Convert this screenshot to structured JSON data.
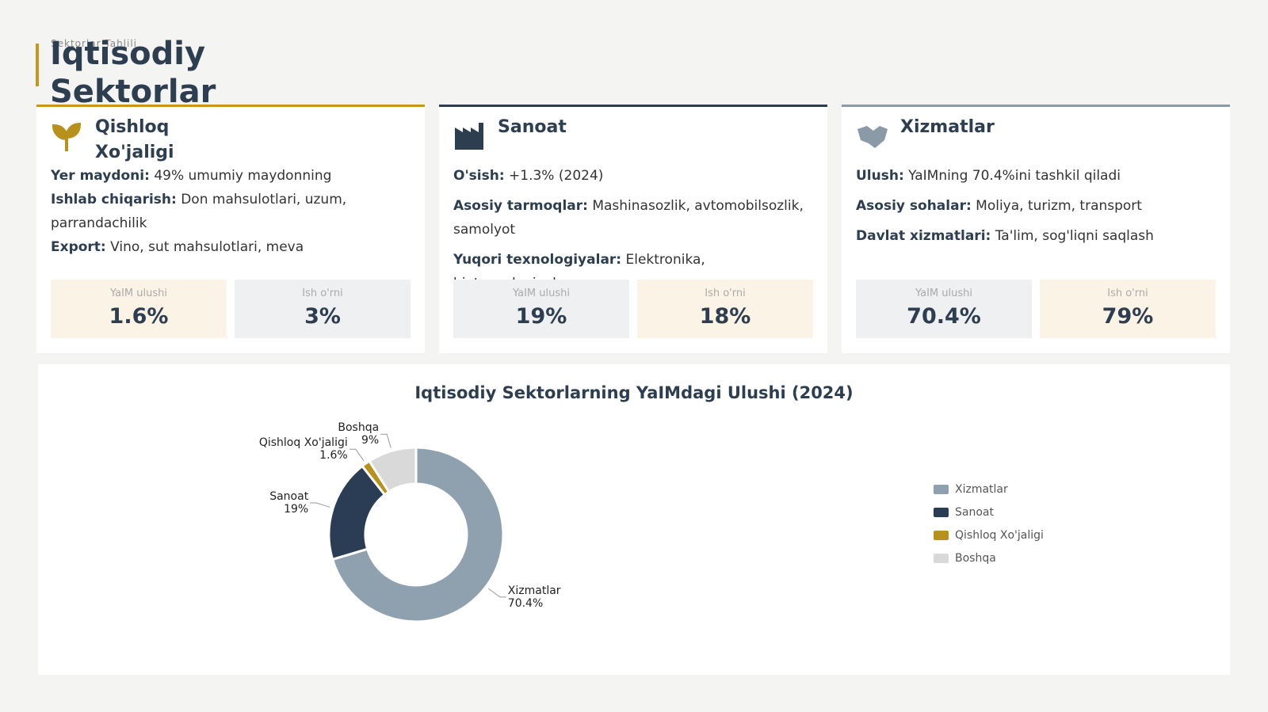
{
  "header": {
    "kicker": "Sektorlar Tahlili",
    "title": "Iqtisodiy Sektorlar"
  },
  "cards": [
    {
      "title": "Qishloq Xo'jaligi",
      "lines": [
        {
          "label": "Yer maydoni:",
          "text": "49% umumiy maydonning"
        },
        {
          "label": "Ishlab chiqarish:",
          "text": "Don mahsulotlari, uzum, parrandachilik"
        },
        {
          "label": "Export:",
          "text": "Vino, sut mahsulotlari, meva"
        }
      ],
      "stats": [
        {
          "label": "YaIM ulushi",
          "value": "1.6%"
        },
        {
          "label": "Ish o'rni",
          "value": "3%"
        }
      ]
    },
    {
      "title": "Sanoat",
      "lines": [
        {
          "label": "O'sish:",
          "text": "+1.3% (2024)"
        },
        {
          "label": "Asosiy tarmoqlar:",
          "text": "Mashinasozlik, avtomobilsozlik, samolyot"
        },
        {
          "label": "Yuqori texnologiyalar:",
          "text": "Elektronika, biotexnologiyalar"
        }
      ],
      "stats": [
        {
          "label": "YaIM ulushi",
          "value": "19%"
        },
        {
          "label": "Ish o'rni",
          "value": "18%"
        }
      ]
    },
    {
      "title": "Xizmatlar",
      "lines": [
        {
          "label": "Ulush:",
          "text": "YaIMning 70.4%ini tashkil qiladi"
        },
        {
          "label": "Asosiy sohalar:",
          "text": "Moliya, turizm, transport"
        },
        {
          "label": "Davlat xizmatlari:",
          "text": "Ta'lim, sog'liqni saqlash"
        }
      ],
      "stats": [
        {
          "label": "YaIM ulushi",
          "value": "70.4%"
        },
        {
          "label": "Ish o'rni",
          "value": "79%"
        }
      ]
    }
  ],
  "chart_data": {
    "type": "donut",
    "title": "Iqtisodiy Sektorlarning YaIMdagi Ulushi (2024)",
    "categories": [
      "Xizmatlar",
      "Sanoat",
      "Qishloq Xo'jaligi",
      "Boshqa"
    ],
    "values": [
      70.4,
      19,
      1.6,
      9
    ],
    "value_labels": [
      "70.4%",
      "19%",
      "1.6%",
      "9%"
    ],
    "colors": [
      "#8fa1ae",
      "#2b3d55",
      "#b8901c",
      "#d9d9d9"
    ],
    "legend": "right"
  }
}
